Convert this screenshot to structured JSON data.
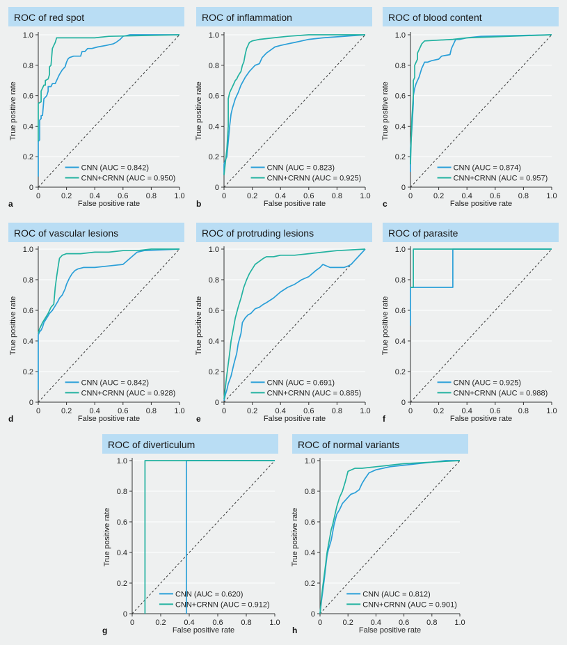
{
  "colors": {
    "cnn": "#2a9fd8",
    "crnn": "#22b2a0",
    "header_bg": "#b9ddf4",
    "panel_bg": "#eef0f0",
    "grid": "#ffffff"
  },
  "common": {
    "xlabel": "False positive rate",
    "ylabel": "True positive rate",
    "x_ticks": [
      "0",
      "0.2",
      "0.4",
      "0.6",
      "0.8",
      "1.0"
    ],
    "y_ticks": [
      "0",
      "0.2",
      "0.4",
      "0.6",
      "0.8",
      "1.0"
    ]
  },
  "chart_data": [
    {
      "type": "line",
      "letter": "a",
      "title": "ROC of red spot",
      "xlim": [
        0,
        1
      ],
      "ylim": [
        0,
        1
      ],
      "series": [
        {
          "name": "CNN (AUC = 0.842)",
          "key": "cnn",
          "x": [
            0,
            0,
            0.01,
            0.01,
            0.02,
            0.02,
            0.03,
            0.04,
            0.05,
            0.06,
            0.07,
            0.07,
            0.09,
            0.1,
            0.12,
            0.13,
            0.14,
            0.15,
            0.17,
            0.19,
            0.2,
            0.21,
            0.22,
            0.25,
            0.3,
            0.31,
            0.33,
            0.35,
            0.38,
            0.42,
            0.48,
            0.53,
            0.55,
            0.58,
            0.6,
            0.65,
            1.0
          ],
          "y": [
            0.07,
            0.3,
            0.31,
            0.44,
            0.45,
            0.47,
            0.47,
            0.58,
            0.59,
            0.6,
            0.63,
            0.66,
            0.66,
            0.68,
            0.68,
            0.7,
            0.72,
            0.74,
            0.77,
            0.79,
            0.82,
            0.84,
            0.85,
            0.86,
            0.86,
            0.89,
            0.89,
            0.91,
            0.91,
            0.92,
            0.93,
            0.94,
            0.95,
            0.97,
            0.99,
            1.0,
            1.0
          ]
        },
        {
          "name": "CNN+CRNN (AUC = 0.950)",
          "key": "crnn",
          "x": [
            0,
            0,
            0.02,
            0.02,
            0.04,
            0.05,
            0.05,
            0.07,
            0.08,
            0.08,
            0.09,
            0.1,
            0.12,
            0.13,
            0.15,
            0.4,
            0.5,
            1.0
          ],
          "y": [
            0.3,
            0.55,
            0.56,
            0.63,
            0.67,
            0.67,
            0.7,
            0.71,
            0.74,
            0.79,
            0.8,
            0.91,
            0.95,
            0.98,
            0.98,
            0.98,
            0.99,
            1.0
          ]
        }
      ]
    },
    {
      "type": "line",
      "letter": "b",
      "title": "ROC of inflammation",
      "xlim": [
        0,
        1
      ],
      "ylim": [
        0,
        1
      ],
      "series": [
        {
          "name": "CNN (AUC = 0.823)",
          "key": "cnn",
          "x": [
            0,
            0,
            0.01,
            0.02,
            0.03,
            0.04,
            0.05,
            0.06,
            0.07,
            0.08,
            0.1,
            0.12,
            0.15,
            0.18,
            0.2,
            0.22,
            0.25,
            0.27,
            0.3,
            0.33,
            0.36,
            0.4,
            0.45,
            0.5,
            0.55,
            0.6,
            0.7,
            1.0
          ],
          "y": [
            0.08,
            0.15,
            0.18,
            0.2,
            0.3,
            0.4,
            0.48,
            0.52,
            0.55,
            0.58,
            0.62,
            0.67,
            0.72,
            0.76,
            0.78,
            0.8,
            0.81,
            0.85,
            0.88,
            0.9,
            0.92,
            0.93,
            0.94,
            0.95,
            0.96,
            0.97,
            0.98,
            1.0
          ]
        },
        {
          "name": "CNN+CRNN (AUC = 0.925)",
          "key": "crnn",
          "x": [
            0,
            0.02,
            0.03,
            0.03,
            0.04,
            0.05,
            0.06,
            0.07,
            0.08,
            0.09,
            0.1,
            0.12,
            0.13,
            0.14,
            0.15,
            0.16,
            0.17,
            0.18,
            0.2,
            0.25,
            0.35,
            0.45,
            0.6,
            1.0
          ],
          "y": [
            0.08,
            0.25,
            0.4,
            0.58,
            0.62,
            0.64,
            0.66,
            0.68,
            0.7,
            0.71,
            0.73,
            0.76,
            0.8,
            0.82,
            0.87,
            0.91,
            0.93,
            0.95,
            0.96,
            0.97,
            0.98,
            0.99,
            1.0,
            1.0
          ]
        }
      ]
    },
    {
      "type": "line",
      "letter": "c",
      "title": "ROC of blood content",
      "xlim": [
        0,
        1
      ],
      "ylim": [
        0,
        1
      ],
      "series": [
        {
          "name": "CNN (AUC = 0.874)",
          "key": "cnn",
          "x": [
            0,
            0,
            0.01,
            0.02,
            0.02,
            0.03,
            0.04,
            0.05,
            0.06,
            0.07,
            0.08,
            0.09,
            0.1,
            0.12,
            0.15,
            0.2,
            0.22,
            0.28,
            0.29,
            0.32,
            0.35,
            0.4,
            0.5,
            1.0
          ],
          "y": [
            0.1,
            0.25,
            0.38,
            0.55,
            0.6,
            0.65,
            0.68,
            0.7,
            0.72,
            0.75,
            0.78,
            0.8,
            0.82,
            0.82,
            0.83,
            0.84,
            0.86,
            0.87,
            0.91,
            0.97,
            0.97,
            0.98,
            0.99,
            1.0
          ]
        },
        {
          "name": "CNN+CRNN (AUC = 0.957)",
          "key": "crnn",
          "x": [
            0,
            0.01,
            0.02,
            0.02,
            0.03,
            0.03,
            0.04,
            0.05,
            0.05,
            0.07,
            0.08,
            0.1,
            0.3,
            0.4,
            1.0
          ],
          "y": [
            0.15,
            0.45,
            0.6,
            0.7,
            0.72,
            0.8,
            0.82,
            0.84,
            0.88,
            0.92,
            0.94,
            0.96,
            0.97,
            0.98,
            1.0
          ]
        }
      ]
    },
    {
      "type": "line",
      "letter": "d",
      "title": "ROC of vascular lesions",
      "xlim": [
        0,
        1
      ],
      "ylim": [
        0,
        1
      ],
      "series": [
        {
          "name": "CNN (AUC = 0.842)",
          "key": "cnn",
          "x": [
            0,
            0,
            0.01,
            0.02,
            0.03,
            0.04,
            0.06,
            0.08,
            0.1,
            0.12,
            0.14,
            0.15,
            0.17,
            0.19,
            0.2,
            0.22,
            0.24,
            0.26,
            0.28,
            0.32,
            0.4,
            0.5,
            0.6,
            0.7,
            0.75,
            1.0
          ],
          "y": [
            0.08,
            0.44,
            0.46,
            0.47,
            0.49,
            0.52,
            0.55,
            0.58,
            0.6,
            0.63,
            0.66,
            0.68,
            0.7,
            0.74,
            0.77,
            0.81,
            0.84,
            0.86,
            0.87,
            0.88,
            0.88,
            0.89,
            0.9,
            0.98,
            0.99,
            1.0
          ]
        },
        {
          "name": "CNN+CRNN (AUC = 0.928)",
          "key": "crnn",
          "x": [
            0,
            0.01,
            0.03,
            0.05,
            0.07,
            0.09,
            0.11,
            0.12,
            0.13,
            0.14,
            0.15,
            0.17,
            0.2,
            0.3,
            0.4,
            0.5,
            0.6,
            0.7,
            0.8,
            1.0
          ],
          "y": [
            0.45,
            0.48,
            0.52,
            0.55,
            0.58,
            0.62,
            0.64,
            0.75,
            0.82,
            0.88,
            0.94,
            0.96,
            0.97,
            0.97,
            0.98,
            0.98,
            0.99,
            0.99,
            1.0,
            1.0
          ]
        }
      ]
    },
    {
      "type": "line",
      "letter": "e",
      "title": "ROC of protruding lesions",
      "xlim": [
        0,
        1
      ],
      "ylim": [
        0,
        1
      ],
      "series": [
        {
          "name": "CNN (AUC = 0.691)",
          "key": "cnn",
          "x": [
            0,
            0.01,
            0.02,
            0.03,
            0.05,
            0.07,
            0.09,
            0.1,
            0.12,
            0.13,
            0.15,
            0.17,
            0.19,
            0.2,
            0.22,
            0.25,
            0.28,
            0.3,
            0.35,
            0.4,
            0.45,
            0.5,
            0.55,
            0.6,
            0.65,
            0.68,
            0.7,
            0.75,
            0.8,
            0.85,
            0.88,
            0.9,
            1.0
          ],
          "y": [
            0.01,
            0.05,
            0.08,
            0.12,
            0.17,
            0.25,
            0.32,
            0.38,
            0.45,
            0.52,
            0.55,
            0.57,
            0.58,
            0.59,
            0.61,
            0.62,
            0.64,
            0.65,
            0.68,
            0.72,
            0.75,
            0.77,
            0.8,
            0.82,
            0.86,
            0.88,
            0.9,
            0.88,
            0.88,
            0.88,
            0.89,
            0.9,
            1.0
          ]
        },
        {
          "name": "CNN+CRNN (AUC = 0.885)",
          "key": "crnn",
          "x": [
            0,
            0.01,
            0.02,
            0.03,
            0.04,
            0.05,
            0.06,
            0.08,
            0.1,
            0.12,
            0.14,
            0.16,
            0.18,
            0.2,
            0.22,
            0.25,
            0.28,
            0.3,
            0.35,
            0.4,
            0.5,
            0.6,
            0.7,
            0.8,
            1.0
          ],
          "y": [
            0.02,
            0.1,
            0.18,
            0.25,
            0.32,
            0.4,
            0.45,
            0.55,
            0.62,
            0.68,
            0.75,
            0.8,
            0.84,
            0.87,
            0.9,
            0.92,
            0.94,
            0.95,
            0.95,
            0.96,
            0.96,
            0.97,
            0.98,
            0.99,
            1.0
          ]
        }
      ]
    },
    {
      "type": "line",
      "letter": "f",
      "title": "ROC of parasite",
      "xlim": [
        0,
        1
      ],
      "ylim": [
        0,
        1
      ],
      "series": [
        {
          "name": "CNN (AUC = 0.925)",
          "key": "cnn",
          "x": [
            0,
            0,
            0.3,
            0.3,
            1.0
          ],
          "y": [
            0.5,
            0.75,
            0.75,
            1.0,
            1.0
          ]
        },
        {
          "name": "CNN+CRNN (AUC = 0.988)",
          "key": "crnn",
          "x": [
            0,
            0.02,
            0.02,
            1.0
          ],
          "y": [
            0.75,
            0.75,
            1.0,
            1.0
          ]
        }
      ]
    },
    {
      "type": "line",
      "letter": "g",
      "title": "ROC of diverticulum",
      "xlim": [
        0,
        1
      ],
      "ylim": [
        0,
        1
      ],
      "series": [
        {
          "name": "CNN (AUC = 0.620)",
          "key": "cnn",
          "x": [
            0.38,
            0.38,
            1.0
          ],
          "y": [
            0,
            1.0,
            1.0
          ]
        },
        {
          "name": "CNN+CRNN (AUC = 0.912)",
          "key": "crnn",
          "x": [
            0.09,
            0.09,
            1.0
          ],
          "y": [
            0,
            1.0,
            1.0
          ]
        }
      ]
    },
    {
      "type": "line",
      "letter": "h",
      "title": "ROC of normal variants",
      "xlim": [
        0,
        1
      ],
      "ylim": [
        0,
        1
      ],
      "series": [
        {
          "name": "CNN (AUC = 0.812)",
          "key": "cnn",
          "x": [
            0,
            0.01,
            0.02,
            0.03,
            0.04,
            0.05,
            0.06,
            0.08,
            0.1,
            0.12,
            0.14,
            0.16,
            0.18,
            0.2,
            0.22,
            0.25,
            0.28,
            0.3,
            0.32,
            0.35,
            0.4,
            0.45,
            0.5,
            0.6,
            0.7,
            0.8,
            0.9,
            1.0
          ],
          "y": [
            0,
            0.08,
            0.15,
            0.22,
            0.3,
            0.38,
            0.42,
            0.48,
            0.58,
            0.65,
            0.68,
            0.72,
            0.74,
            0.76,
            0.78,
            0.79,
            0.81,
            0.85,
            0.88,
            0.92,
            0.94,
            0.95,
            0.96,
            0.97,
            0.98,
            0.99,
            1.0,
            1.0
          ]
        },
        {
          "name": "CNN+CRNN (AUC = 0.901)",
          "key": "crnn",
          "x": [
            0,
            0.01,
            0.02,
            0.03,
            0.04,
            0.05,
            0.06,
            0.07,
            0.08,
            0.09,
            0.1,
            0.12,
            0.14,
            0.16,
            0.18,
            0.2,
            0.25,
            0.3,
            0.4,
            0.5,
            0.6,
            0.8,
            1.0
          ],
          "y": [
            0,
            0.1,
            0.18,
            0.25,
            0.32,
            0.4,
            0.45,
            0.5,
            0.55,
            0.58,
            0.62,
            0.7,
            0.76,
            0.8,
            0.86,
            0.93,
            0.95,
            0.95,
            0.96,
            0.97,
            0.98,
            0.99,
            1.0
          ]
        }
      ]
    }
  ]
}
